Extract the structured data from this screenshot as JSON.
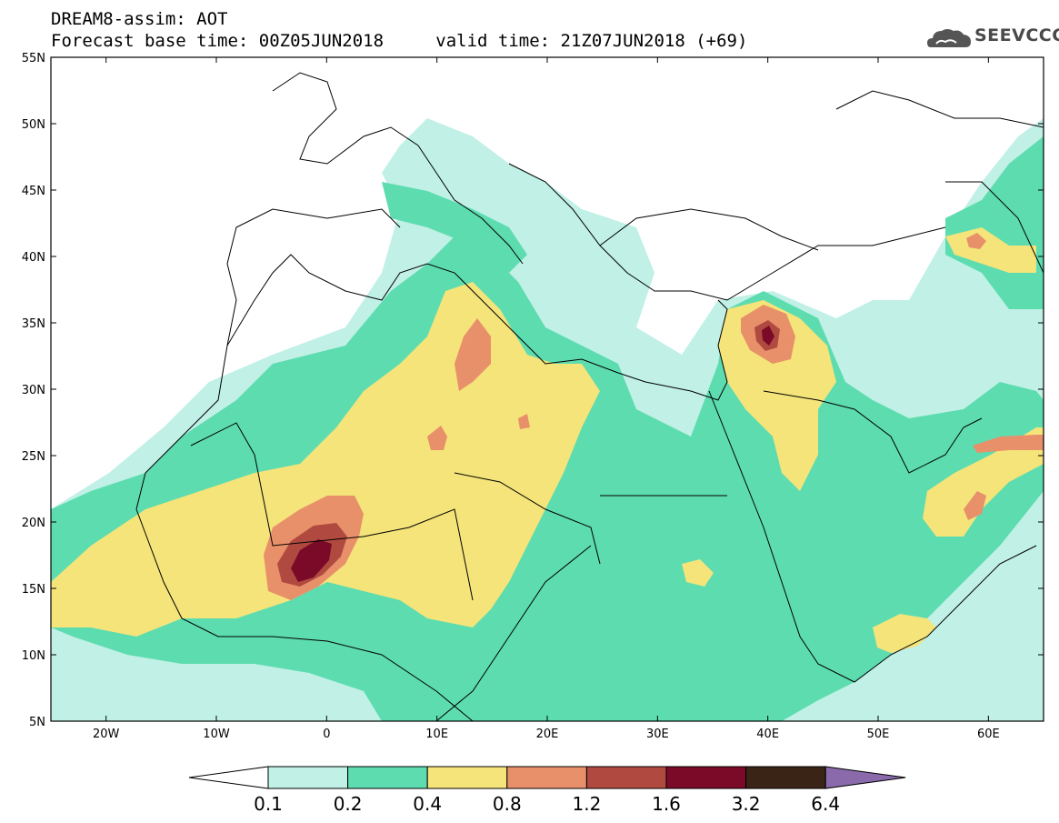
{
  "header": {
    "line1": "DREAM8-assim: AOT",
    "line2_base": "Forecast base time: 00Z05JUN2018",
    "line2_valid": "valid time: 21Z07JUN2018 (+69)"
  },
  "logo": {
    "icon": "cloud-icon",
    "text": "SEEVCCC"
  },
  "map": {
    "lat_labels": [
      "55N",
      "50N",
      "45N",
      "40N",
      "35N",
      "30N",
      "25N",
      "20N",
      "15N",
      "10N",
      "5N"
    ],
    "lat_values": [
      55,
      50,
      45,
      40,
      35,
      30,
      25,
      20,
      15,
      10,
      5
    ],
    "lon_labels": [
      "20W",
      "10W",
      "0",
      "10E",
      "20E",
      "30E",
      "40E",
      "50E",
      "60E"
    ],
    "lon_values": [
      -20,
      -10,
      0,
      10,
      20,
      30,
      40,
      50,
      60
    ],
    "lon_range": [
      -25,
      65
    ],
    "lat_range": [
      5,
      55
    ]
  },
  "colorbar": {
    "levels": [
      "0.1",
      "0.2",
      "0.4",
      "0.8",
      "1.2",
      "1.6",
      "3.2",
      "6.4"
    ],
    "colors": [
      "#ffffff",
      "#c0f0e6",
      "#5ddcb0",
      "#f4e47a",
      "#e8906a",
      "#b04a40",
      "#7a0a28",
      "#3a2416",
      "#8a6aaa"
    ]
  },
  "fields": {
    "c02": "#c0f0e6",
    "c04": "#5ddcb0",
    "c08": "#f4e47a",
    "c12": "#e8906a",
    "c16": "#b04a40",
    "c32": "#7a0a28"
  }
}
